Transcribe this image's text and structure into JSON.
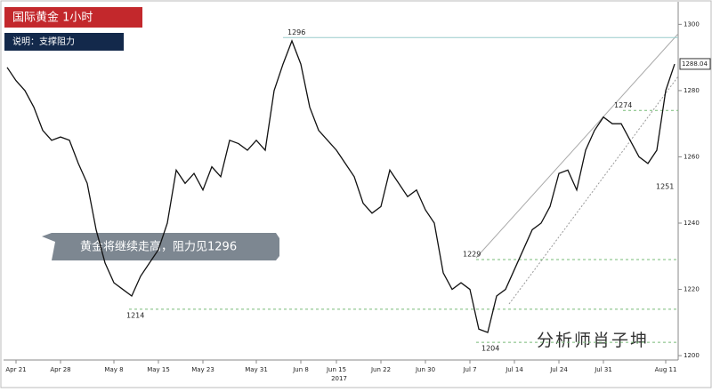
{
  "chart_data": {
    "type": "line",
    "title": "国际黄金  1小时",
    "subtitle": "说明：支撑阻力",
    "annotation": "黄金将继续走高，阻力见1296",
    "watermark": "分析师肖子坤",
    "year_label": "2017",
    "color": "#111111",
    "categories": [
      null,
      "Apr 21",
      null,
      null,
      null,
      null,
      "Apr 28",
      null,
      null,
      null,
      null,
      null,
      "May 8",
      null,
      null,
      null,
      null,
      "May 15",
      null,
      null,
      null,
      null,
      "May 23",
      null,
      null,
      null,
      null,
      null,
      "May 31",
      null,
      null,
      null,
      null,
      "Jun 8",
      null,
      null,
      null,
      "Jun 15",
      null,
      null,
      null,
      null,
      "Jun 22",
      null,
      null,
      null,
      null,
      "Jun 30",
      null,
      null,
      null,
      null,
      "Jul 7",
      null,
      null,
      null,
      null,
      "Jul 14",
      null,
      null,
      null,
      null,
      "Jul 24",
      null,
      null,
      null,
      null,
      "Jul 31",
      null,
      null,
      null,
      null,
      null,
      null,
      "Aug 11",
      null
    ],
    "values": [
      1287,
      1283,
      1280,
      1275,
      1268,
      1265,
      1266,
      1265,
      1258,
      1252,
      1238,
      1228,
      1222,
      1220,
      1218,
      1224,
      1228,
      1232,
      1240,
      1256,
      1252,
      1255,
      1250,
      1257,
      1254,
      1265,
      1264,
      1262,
      1265,
      1262,
      1280,
      1288,
      1295,
      1288,
      1275,
      1268,
      1265,
      1262,
      1258,
      1254,
      1246,
      1243,
      1245,
      1256,
      1252,
      1248,
      1250,
      1244,
      1240,
      1225,
      1220,
      1222,
      1220,
      1208,
      1207,
      1218,
      1220,
      1226,
      1232,
      1238,
      1240,
      1245,
      1255,
      1256,
      1250,
      1262,
      1268,
      1272,
      1270,
      1270,
      1265,
      1260,
      1258,
      1262,
      1280,
      1288
    ],
    "levels": [
      1296,
      1229,
      1214,
      1204,
      1274,
      1251
    ],
    "last_price": 1288.04,
    "ylim": [
      1196,
      1306
    ],
    "yticks": [
      1200,
      1220,
      1240,
      1260,
      1280,
      1300
    ]
  }
}
